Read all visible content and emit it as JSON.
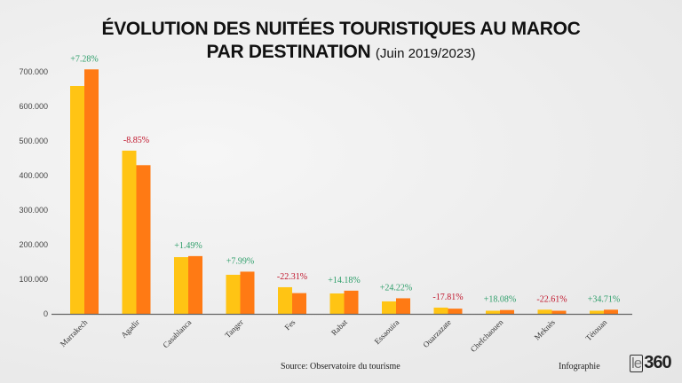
{
  "header": {
    "title_line1": "ÉVOLUTION DES NUITÉES TOURISTIQUES AU MAROC",
    "title_line2": "PAR DESTINATION",
    "subtitle": "(Juin 2019/2023)"
  },
  "footer": {
    "source": "Source: Observatoire du tourisme",
    "credit": "Infographie",
    "logo_prefix": "le",
    "logo_suffix": "360"
  },
  "colors": {
    "series_2019": "#FFC414",
    "series_2023": "#FF7A14",
    "positive": "#2E9E6A",
    "negative": "#C0142A",
    "axis": "#666666"
  },
  "chart_data": {
    "type": "bar",
    "title": "ÉVOLUTION DES NUITÉES TOURISTIQUES AU MAROC PAR DESTINATION (Juin 2019/2023)",
    "xlabel": "",
    "ylabel": "",
    "ylim": [
      0,
      700000
    ],
    "yticks": [
      0,
      100000,
      200000,
      300000,
      400000,
      500000,
      600000,
      700000
    ],
    "ytick_labels": [
      "0",
      "100.000",
      "200.000",
      "300.000",
      "400.000",
      "500.000",
      "600.000",
      "700.000"
    ],
    "grid": false,
    "legend": "none",
    "categories": [
      "Marrakech",
      "Agadir",
      "Casablanca",
      "Tanger",
      "Fes",
      "Rabat",
      "Essaouira",
      "Ouarzazate",
      "Chefchaouen",
      "Meknès",
      "Tétouan"
    ],
    "series": [
      {
        "name": "Juin 2019",
        "values": [
          659000,
          472000,
          164000,
          113000,
          77000,
          59000,
          36000,
          18000,
          9000,
          12000,
          9000
        ]
      },
      {
        "name": "Juin 2023",
        "values": [
          707000,
          430000,
          167000,
          122000,
          60000,
          67000,
          45000,
          15000,
          11000,
          9000,
          12000
        ]
      }
    ],
    "annotations": [
      "+7.28%",
      "-8.85%",
      "+1.49%",
      "+7.99%",
      "-22.31%",
      "+14.18%",
      "+24.22%",
      "-17.81%",
      "+18.08%",
      "-22.61%",
      "+34.71%"
    ]
  }
}
